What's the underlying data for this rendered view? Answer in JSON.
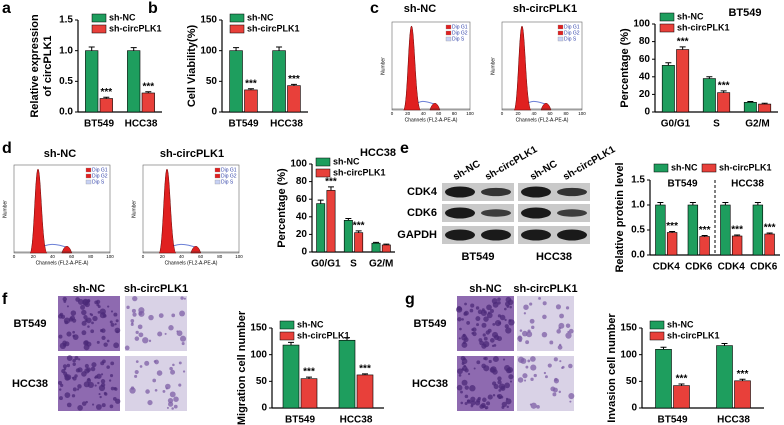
{
  "panel_letters": [
    "a",
    "b",
    "c",
    "d",
    "e",
    "f",
    "g"
  ],
  "chart_data": [
    {
      "type": "bar",
      "ylabel": [
        "Relative expression",
        "of circPLK1"
      ],
      "categories": [
        "BT549",
        "HCC38"
      ],
      "ylim": [
        0,
        1.5
      ],
      "yticks": [
        {
          "value": 0,
          "label": "0.0"
        },
        {
          "value": 0.5,
          "label": "0.5"
        },
        {
          "value": 1,
          "label": "1.0"
        },
        {
          "value": 1.5,
          "label": "1.5"
        }
      ],
      "series": [
        {
          "name": "sh-NC",
          "color": "#1e9e5e",
          "values": [
            1,
            1
          ],
          "errors": [
            0.06,
            0.05
          ]
        },
        {
          "name": "sh-circPLK1",
          "color": "#e8403a",
          "values": [
            0.22,
            0.31
          ],
          "errors": [
            0.02,
            0.02
          ]
        }
      ],
      "significance": [
        "***",
        "***"
      ]
    },
    {
      "type": "bar",
      "ylabel": [
        "Cell Viability(%)"
      ],
      "categories": [
        "BT549",
        "HCC38"
      ],
      "ylim": [
        0,
        150
      ],
      "yticks": [
        0,
        50,
        100,
        150
      ],
      "series": [
        {
          "name": "sh-NC",
          "color": "#1e9e5e",
          "values": [
            100,
            100
          ],
          "errors": [
            5,
            6
          ]
        },
        {
          "name": "sh-circPLK1",
          "color": "#e8403a",
          "values": [
            36,
            43
          ],
          "errors": [
            2,
            2
          ]
        }
      ],
      "significance": [
        "***",
        "***"
      ]
    },
    {
      "type": "bar",
      "title": "BT549",
      "ylabel": [
        "Percentage (%)"
      ],
      "categories": [
        "G0/G1",
        "S",
        "G2/M"
      ],
      "ylim": [
        0,
        100
      ],
      "yticks": [
        0,
        20,
        40,
        60,
        80,
        100
      ],
      "series": [
        {
          "name": "sh-NC",
          "color": "#1e9e5e",
          "values": [
            53,
            38,
            11
          ],
          "errors": [
            3,
            2,
            1
          ]
        },
        {
          "name": "sh-circPLK1",
          "color": "#e8403a",
          "values": [
            71,
            22,
            9
          ],
          "errors": [
            3,
            2,
            1
          ]
        }
      ],
      "significance": [
        "***",
        "***",
        null
      ]
    },
    {
      "type": "bar",
      "title": "HCC38",
      "ylabel": [
        "Percentage (%)"
      ],
      "categories": [
        "G0/G1",
        "S",
        "G2/M"
      ],
      "ylim": [
        0,
        100
      ],
      "yticks": [
        0,
        20,
        40,
        60,
        80,
        100
      ],
      "series": [
        {
          "name": "sh-NC",
          "color": "#1e9e5e",
          "values": [
            55,
            36,
            10
          ],
          "errors": [
            4,
            2,
            1
          ]
        },
        {
          "name": "sh-circPLK1",
          "color": "#e8403a",
          "values": [
            70,
            22,
            8
          ],
          "errors": [
            4,
            2,
            1
          ]
        }
      ],
      "significance": [
        "***",
        "***",
        null
      ]
    },
    {
      "type": "bar",
      "ylabel": [
        "Relative protein level"
      ],
      "groups": [
        "BT549",
        "HCC38"
      ],
      "categories": [
        "CDK4",
        "CDK6",
        "CDK4",
        "CDK6"
      ],
      "ylim": [
        0,
        1.5
      ],
      "yticks": [
        {
          "value": 0,
          "label": "0.0"
        },
        {
          "value": 0.5,
          "label": "0.5"
        },
        {
          "value": 1,
          "label": "1.0"
        },
        {
          "value": 1.5,
          "label": "1.5"
        }
      ],
      "series": [
        {
          "name": "sh-NC",
          "color": "#1e9e5e",
          "values": [
            1,
            1,
            1,
            1
          ],
          "errors": [
            0.05,
            0.05,
            0.05,
            0.05
          ]
        },
        {
          "name": "sh-circPLK1",
          "color": "#e8403a",
          "values": [
            0.45,
            0.37,
            0.38,
            0.42
          ],
          "errors": [
            0.02,
            0.02,
            0.02,
            0.02
          ]
        }
      ],
      "significance": [
        "***",
        "***",
        "***",
        "***"
      ]
    },
    {
      "type": "bar",
      "ylabel": [
        "Migration cell number"
      ],
      "categories": [
        "BT549",
        "HCC38"
      ],
      "ylim": [
        0,
        150
      ],
      "yticks": [
        0,
        50,
        100,
        150
      ],
      "series": [
        {
          "name": "sh-NC",
          "color": "#1e9e5e",
          "values": [
            118,
            127
          ],
          "errors": [
            5,
            5
          ]
        },
        {
          "name": "sh-circPLK1",
          "color": "#e8403a",
          "values": [
            55,
            62
          ],
          "errors": [
            3,
            2
          ]
        }
      ],
      "significance": [
        "***",
        "***"
      ]
    },
    {
      "type": "bar",
      "ylabel": [
        "Invasion cell number"
      ],
      "categories": [
        "BT549",
        "HCC38"
      ],
      "ylim": [
        0,
        150
      ],
      "yticks": [
        0,
        50,
        100,
        150
      ],
      "series": [
        {
          "name": "sh-NC",
          "color": "#1e9e5e",
          "values": [
            110,
            117
          ],
          "errors": [
            4,
            4
          ]
        },
        {
          "name": "sh-circPLK1",
          "color": "#e8403a",
          "values": [
            42,
            51
          ],
          "errors": [
            3,
            3
          ]
        }
      ],
      "significance": [
        "***",
        "***"
      ]
    }
  ],
  "flow_cytometry": [
    {
      "title": "sh-NC",
      "legend": [
        "Dip G1",
        "Dip G2",
        "Dip S"
      ],
      "ylabel": "Number",
      "xlabel": "Channels (FL2-A-PE-A)",
      "xticks": [
        "0",
        "20",
        "40",
        "60",
        "80",
        "100"
      ]
    },
    {
      "title": "sh-circPLK1",
      "legend": [
        "Dip G1",
        "Dip G2",
        "Dip S"
      ],
      "ylabel": "Number",
      "xlabel": "Channels (FL2-A-PE-A)",
      "xticks": [
        "0",
        "20",
        "40",
        "60",
        "80",
        "100"
      ]
    },
    {
      "title": "sh-NC",
      "legend": [
        "Dip G1",
        "Dip G2",
        "Dip S"
      ],
      "ylabel": "Number",
      "xlabel": "Channels (FL2-A-PE-A)",
      "xticks": [
        "0",
        "20",
        "40",
        "60",
        "80",
        "100"
      ]
    },
    {
      "title": "sh-circPLK1",
      "legend": [
        "Dip G1",
        "Dip G2",
        "Dip S"
      ],
      "ylabel": "Number",
      "xlabel": "Channels (FL2-A-PE-A)",
      "xticks": [
        "0",
        "20",
        "40",
        "60",
        "80",
        "100"
      ]
    }
  ],
  "western_blot": {
    "conditions": [
      "sh-NC",
      "sh-circPLK1",
      "sh-NC",
      "sh-circPLK1"
    ],
    "proteins": [
      "CDK4",
      "CDK6",
      "GAPDH"
    ],
    "cell_lines": [
      "BT549",
      "HCC38"
    ]
  },
  "transwell": [
    {
      "conditions": [
        "sh-NC",
        "sh-circPLK1"
      ],
      "cell_lines": [
        "BT549",
        "HCC38"
      ]
    },
    {
      "conditions": [
        "sh-NC",
        "sh-circPLK1"
      ],
      "cell_lines": [
        "BT549",
        "HCC38"
      ]
    }
  ]
}
